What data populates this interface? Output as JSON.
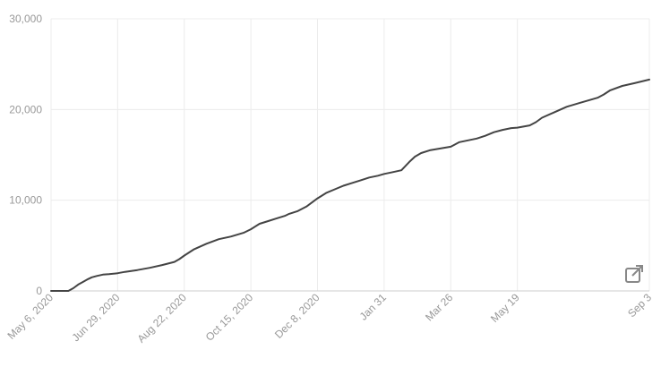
{
  "chart_data": {
    "type": "line",
    "xlabel": "",
    "ylabel": "",
    "ylim": [
      0,
      30000
    ],
    "y_ticks": [
      0,
      10000,
      20000,
      30000
    ],
    "y_tick_labels": [
      "0",
      "10,000",
      "20,000",
      "30,000"
    ],
    "x_range": [
      "2020-05-06",
      "2021-09-03"
    ],
    "x_ticks": [
      "2020-05-06",
      "2020-06-29",
      "2020-08-22",
      "2020-10-15",
      "2020-12-08",
      "2021-01-31",
      "2021-03-26",
      "2021-05-19",
      "2021-09-03"
    ],
    "x_tick_labels": [
      "May 6, 2020",
      "Jun 29, 2020",
      "Aug 22, 2020",
      "Oct 15, 2020",
      "Dec 8, 2020",
      "Jan 31",
      "Mar 26",
      "May 19",
      "Sep 3"
    ],
    "grid": true,
    "line_color": "#444444",
    "series": [
      {
        "x": [
          "2020-05-06",
          "2020-05-20",
          "2020-05-24",
          "2020-05-28",
          "2020-06-01",
          "2020-06-05",
          "2020-06-08",
          "2020-06-12",
          "2020-06-17",
          "2020-06-22",
          "2020-06-29",
          "2020-07-05",
          "2020-07-15",
          "2020-07-25",
          "2020-08-04",
          "2020-08-14",
          "2020-08-18",
          "2020-08-22",
          "2020-08-30",
          "2020-09-09",
          "2020-09-19",
          "2020-09-29",
          "2020-10-09",
          "2020-10-12",
          "2020-10-15",
          "2020-10-22",
          "2020-10-29",
          "2020-11-05",
          "2020-11-12",
          "2020-11-15",
          "2020-11-22",
          "2020-11-29",
          "2020-12-08",
          "2020-12-15",
          "2020-12-22",
          "2020-12-29",
          "2021-01-05",
          "2021-01-12",
          "2021-01-19",
          "2021-01-26",
          "2021-01-31",
          "2021-02-07",
          "2021-02-14",
          "2021-02-21",
          "2021-02-25",
          "2021-03-02",
          "2021-03-09",
          "2021-03-26",
          "2021-04-02",
          "2021-04-09",
          "2021-04-16",
          "2021-04-23",
          "2021-04-30",
          "2021-05-07",
          "2021-05-14",
          "2021-05-19",
          "2021-05-29",
          "2021-06-03",
          "2021-06-08",
          "2021-06-18",
          "2021-06-28",
          "2021-07-08",
          "2021-07-18",
          "2021-07-23",
          "2021-07-28",
          "2021-08-02",
          "2021-08-12",
          "2021-08-22",
          "2021-09-03"
        ],
        "y": [
          0,
          0,
          300,
          700,
          1000,
          1300,
          1500,
          1650,
          1800,
          1850,
          1950,
          2100,
          2300,
          2550,
          2850,
          3200,
          3500,
          3900,
          4600,
          5200,
          5700,
          6000,
          6400,
          6600,
          6800,
          7400,
          7700,
          8000,
          8300,
          8500,
          8800,
          9300,
          10200,
          10800,
          11200,
          11600,
          11900,
          12200,
          12500,
          12700,
          12900,
          13100,
          13300,
          14300,
          14800,
          15200,
          15500,
          15900,
          16400,
          16600,
          16800,
          17100,
          17500,
          17750,
          17950,
          18000,
          18250,
          18600,
          19100,
          19700,
          20300,
          20700,
          21100,
          21300,
          21650,
          22100,
          22600,
          22900,
          23300
        ]
      }
    ]
  },
  "open_icon_name": "open-external-icon"
}
